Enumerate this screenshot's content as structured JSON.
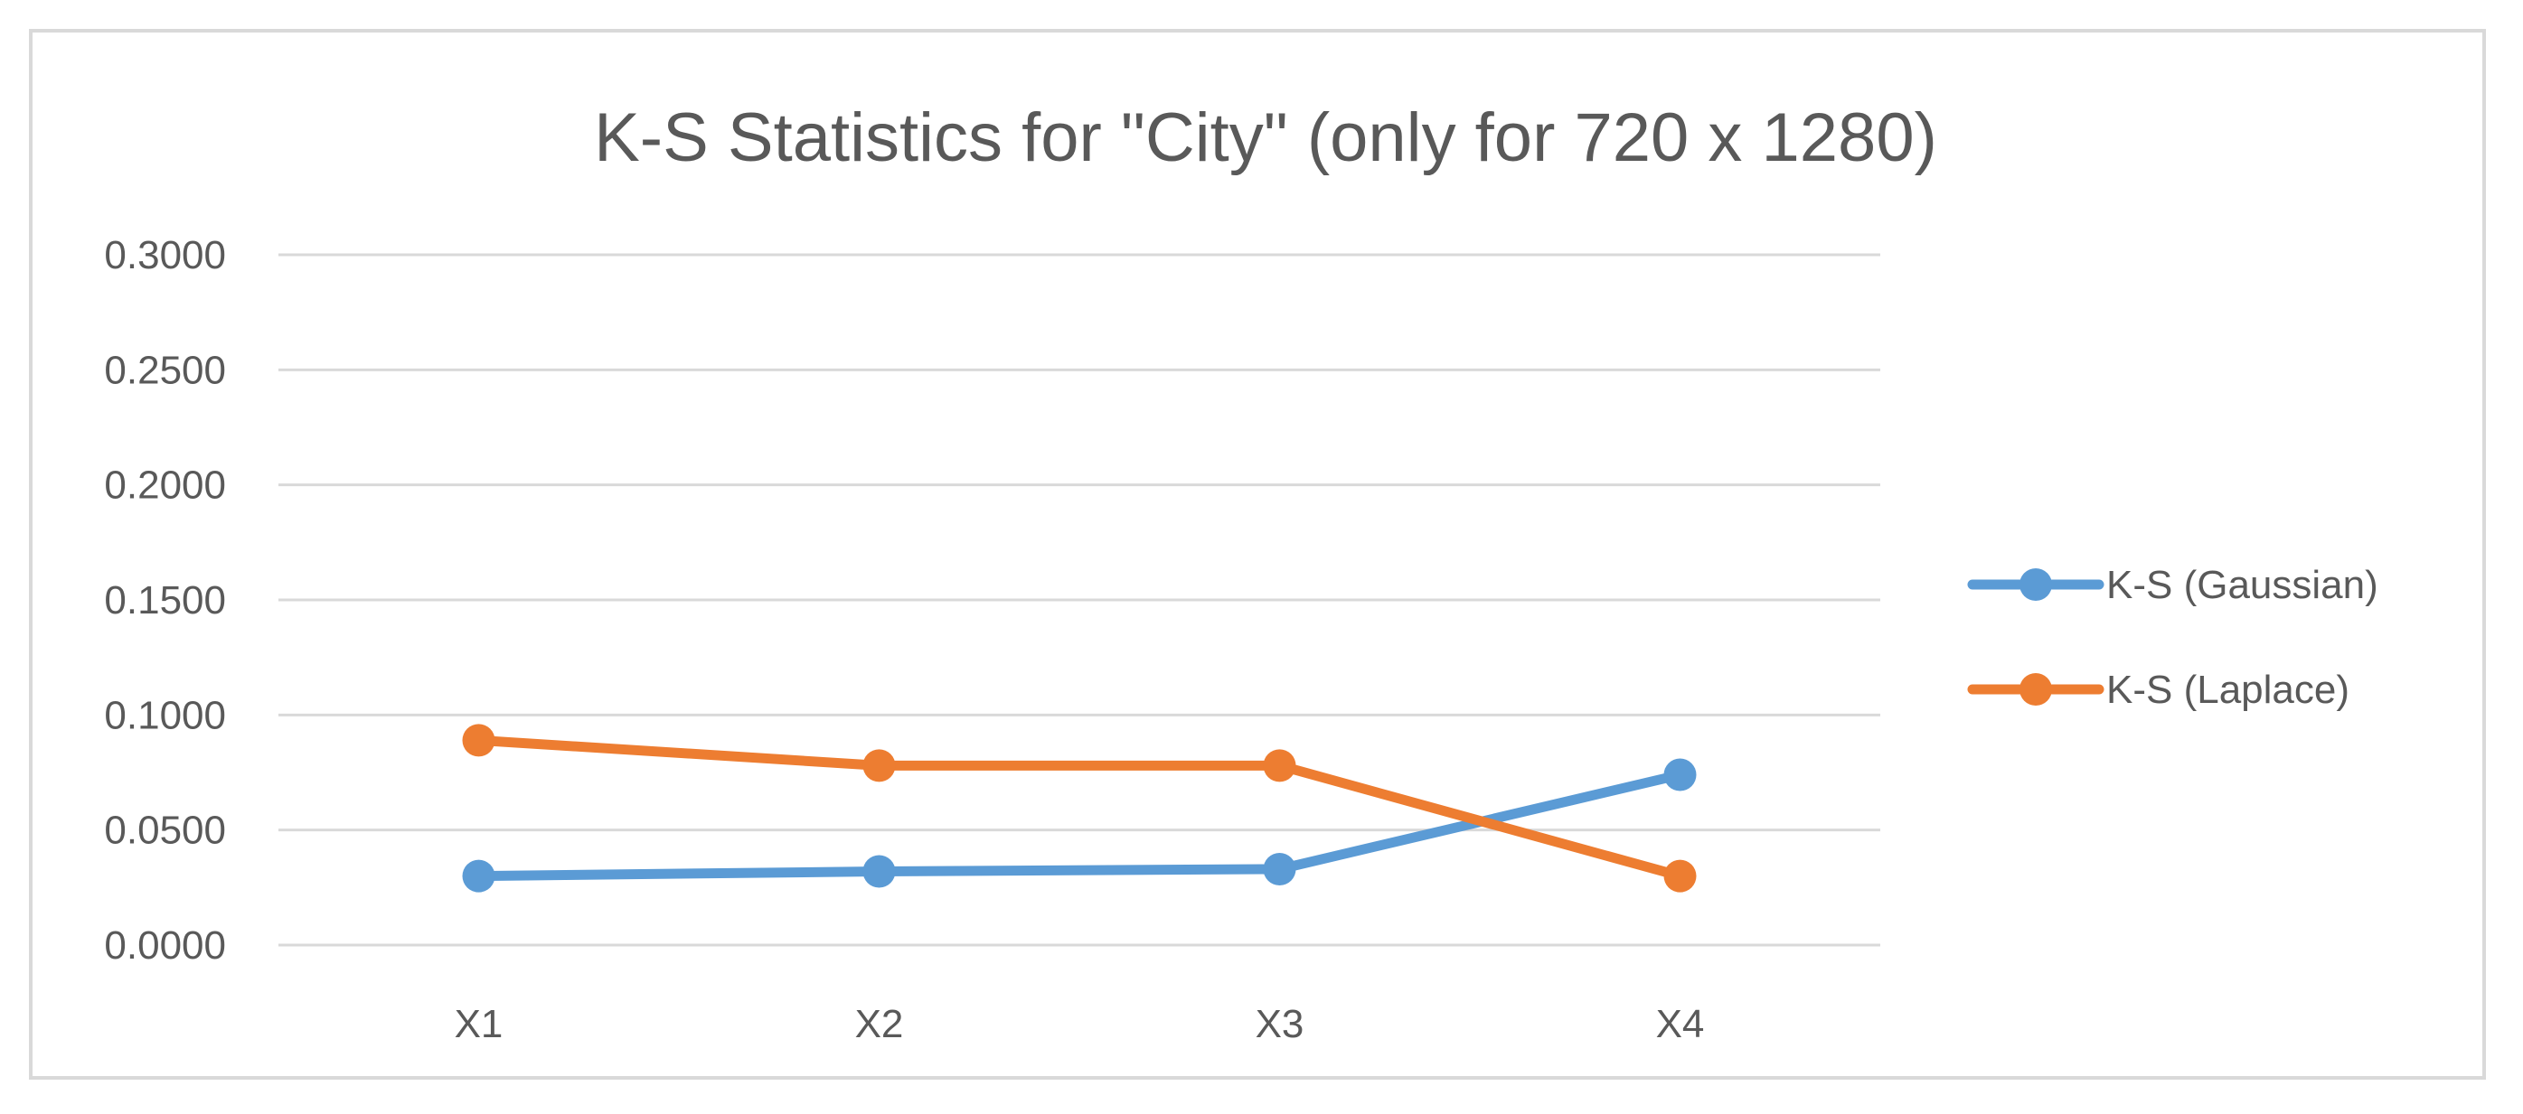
{
  "chart_data": {
    "type": "line",
    "title": "K-S Statistics for \"City\" (only for 720 x 1280)",
    "xlabel": "",
    "ylabel": "",
    "categories": [
      "X1",
      "X2",
      "X3",
      "X4"
    ],
    "ylim": [
      0,
      0.3
    ],
    "yticks": [
      "0.0000",
      "0.0500",
      "0.1000",
      "0.1500",
      "0.2000",
      "0.2500",
      "0.3000"
    ],
    "ytick_values": [
      0,
      0.05,
      0.1,
      0.15,
      0.2,
      0.25,
      0.3
    ],
    "grid": true,
    "legend_position": "right",
    "series": [
      {
        "name": "K-S (Gaussian)",
        "color": "#5b9bd5",
        "values": [
          0.03,
          0.032,
          0.033,
          0.074
        ]
      },
      {
        "name": "K-S (Laplace)",
        "color": "#ed7d31",
        "values": [
          0.089,
          0.078,
          0.078,
          0.03
        ]
      }
    ]
  }
}
